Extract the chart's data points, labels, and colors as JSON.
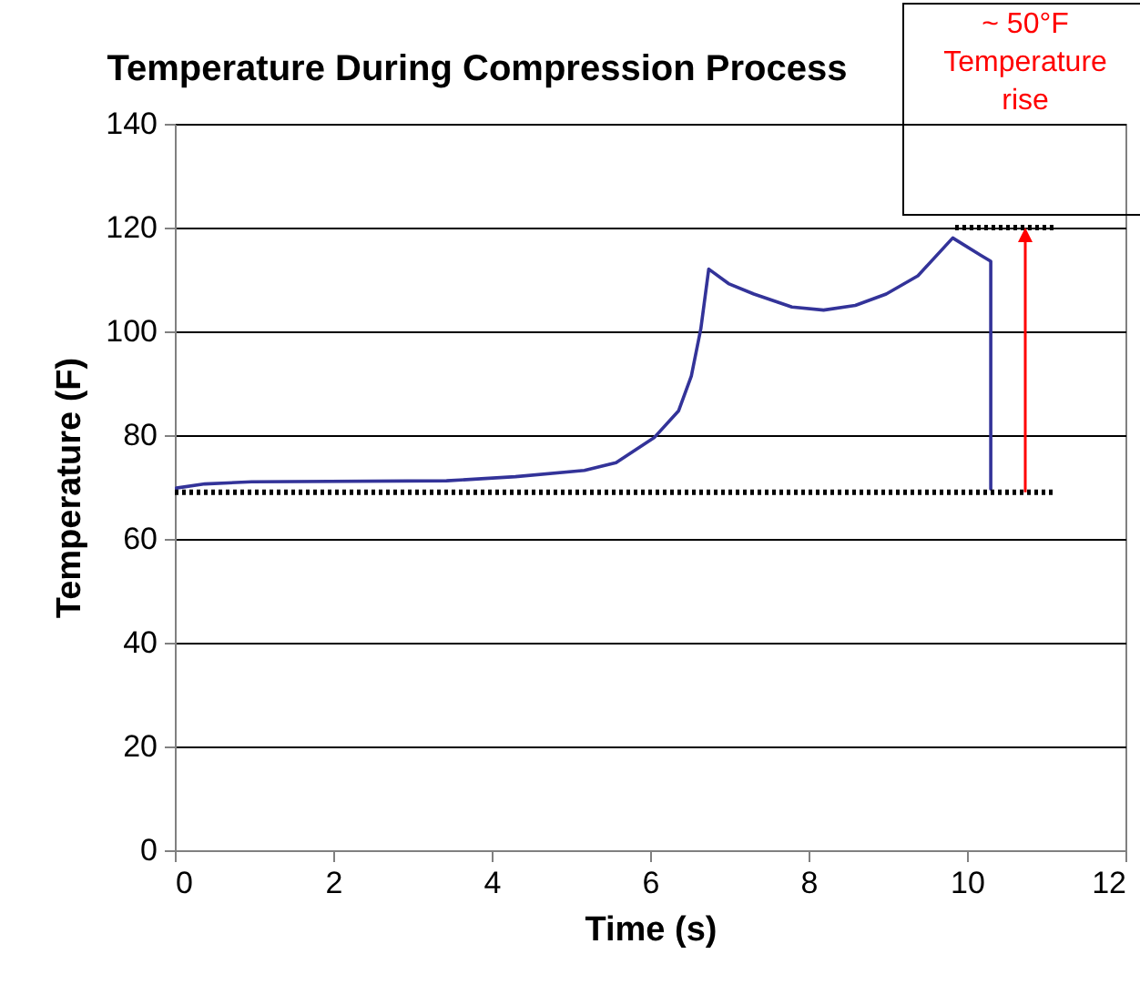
{
  "chart_data": {
    "type": "line",
    "title": "Temperature During Compression Process",
    "xlabel": "Time (s)",
    "ylabel": "Temperature (F)",
    "xlim": [
      0,
      12
    ],
    "xticks": [
      0,
      2,
      4,
      6,
      8,
      10,
      12
    ],
    "ylim": [
      0,
      140
    ],
    "yticks": [
      0,
      20,
      40,
      60,
      80,
      100,
      120,
      140
    ],
    "grid": "y",
    "marker": "none",
    "series": [
      {
        "color": "#333399",
        "line_style": "solid",
        "x": [
          0.02,
          0.38,
          0.97,
          3.43,
          4.3,
          5.17,
          5.57,
          6.05,
          6.36,
          6.52,
          6.64,
          6.74,
          6.99,
          7.31,
          7.79,
          8.19,
          8.59,
          8.98,
          9.38,
          9.82,
          10.17,
          10.3,
          10.3
        ],
        "values": [
          69.8,
          70.6,
          71,
          71.2,
          72,
          73.2,
          74.7,
          79.5,
          84.7,
          91.4,
          100.5,
          112,
          109.2,
          107.2,
          104.7,
          104.1,
          105,
          107.2,
          110.7,
          118,
          114.7,
          113.5,
          69.6
        ]
      },
      {
        "color": "#000000",
        "line_style": "dotted",
        "x": [
          0,
          11.12
        ],
        "values": [
          69,
          69
        ]
      },
      {
        "color": "#000000",
        "line_style": "dotted",
        "x": [
          9.85,
          11.12
        ],
        "values": [
          120,
          120
        ]
      }
    ],
    "annotations": [
      "~ 50°F\nTemperature\nrise"
    ]
  }
}
